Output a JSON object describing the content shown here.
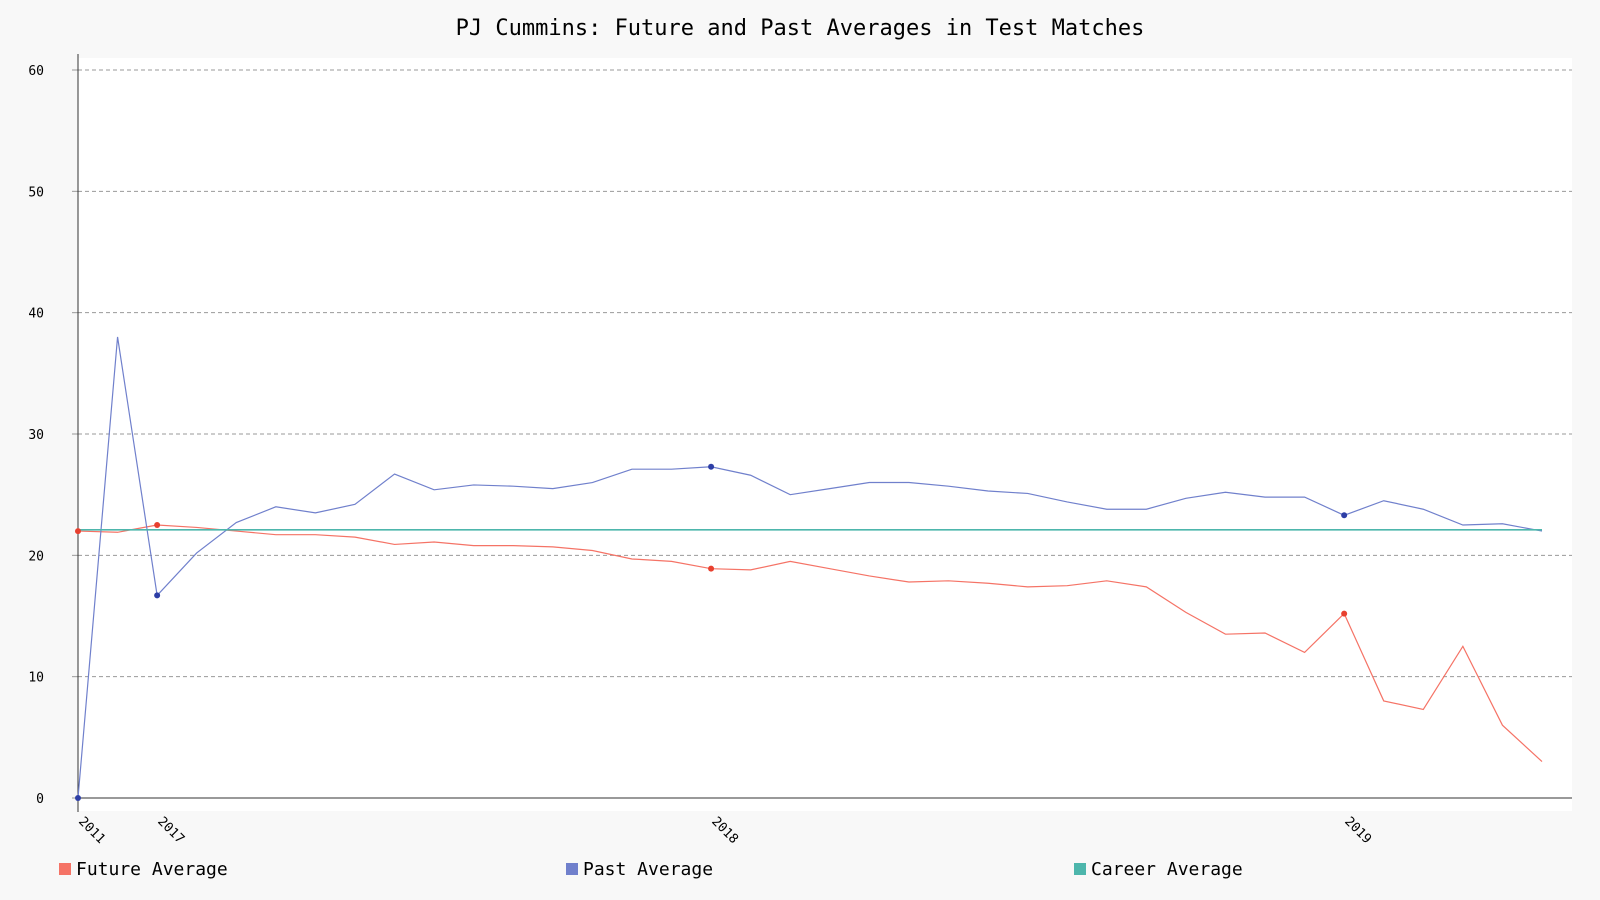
{
  "chart_data": {
    "type": "line",
    "title": "PJ Cummins: Future and Past Averages in Test Matches",
    "xlabel": "",
    "ylabel": "",
    "ylim": [
      0,
      60
    ],
    "yticks": [
      0,
      10,
      20,
      30,
      40,
      50,
      60
    ],
    "x_count": 38,
    "x_ticks": [
      {
        "index": 0,
        "label": "2011"
      },
      {
        "index": 2,
        "label": "2017"
      },
      {
        "index": 16,
        "label": "2018"
      },
      {
        "index": 32,
        "label": "2019"
      }
    ],
    "grid": true,
    "legend_position": "bottom",
    "series": [
      {
        "name": "Future Average",
        "color": "#f57366",
        "marker_color": "#e8402f",
        "values": [
          22.0,
          21.9,
          22.5,
          22.3,
          22.0,
          21.7,
          21.7,
          21.5,
          20.9,
          21.1,
          20.8,
          20.8,
          20.7,
          20.4,
          19.7,
          19.5,
          18.9,
          18.8,
          19.5,
          18.9,
          18.3,
          17.8,
          17.9,
          17.7,
          17.4,
          17.5,
          17.9,
          17.4,
          15.3,
          13.5,
          13.6,
          12.0,
          15.2,
          8.0,
          7.3,
          12.5,
          6.0,
          3.0
        ],
        "markers": [
          0,
          2,
          16,
          32
        ]
      },
      {
        "name": "Past Average",
        "color": "#7080cc",
        "marker_color": "#2d3ea6",
        "values": [
          0.0,
          38.0,
          16.7,
          20.2,
          22.7,
          24.0,
          23.5,
          24.2,
          26.7,
          25.4,
          25.8,
          25.7,
          25.5,
          26.0,
          27.1,
          27.1,
          27.3,
          26.6,
          25.0,
          25.5,
          26.0,
          26.0,
          25.7,
          25.3,
          25.1,
          24.4,
          23.8,
          23.8,
          24.7,
          25.2,
          24.8,
          24.8,
          23.3,
          24.5,
          23.8,
          22.5,
          22.6,
          22.0
        ],
        "markers": [
          0,
          2,
          16,
          32
        ]
      },
      {
        "name": "Career Average",
        "color": "#4db6ac",
        "constant": 22.1
      }
    ]
  }
}
